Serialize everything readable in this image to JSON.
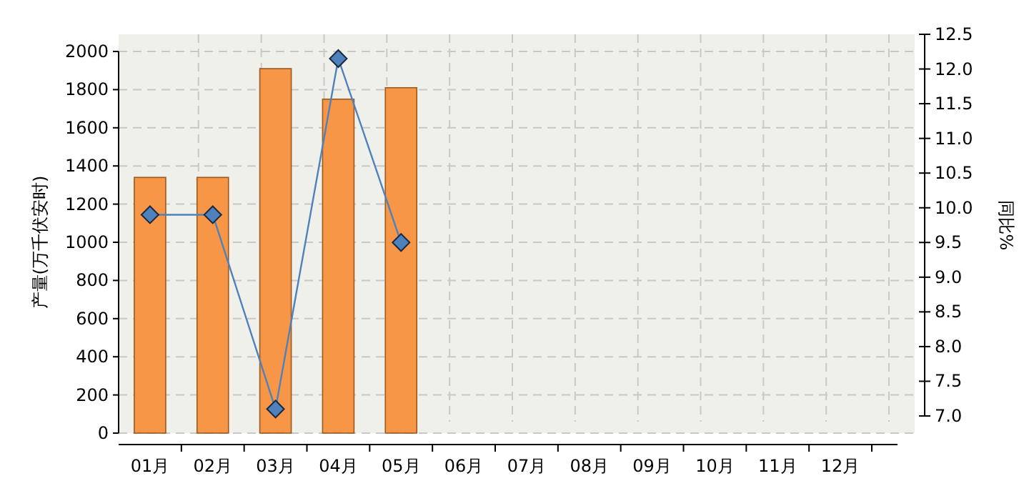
{
  "chart_data": {
    "type": "bar",
    "categories": [
      "01月",
      "02月",
      "03月",
      "04月",
      "05月",
      "06月",
      "07月",
      "08月",
      "09月",
      "10月",
      "11月",
      "12月"
    ],
    "ylabel": "产量(万千伏安时)",
    "y2label": "同比%",
    "ylim": [
      0,
      2000
    ],
    "yticks": [
      0,
      200,
      400,
      600,
      800,
      1000,
      1200,
      1400,
      1600,
      1800,
      2000
    ],
    "y2lim": [
      7,
      12.5
    ],
    "y2ticks": [
      {
        "value": 7,
        "label": "7.0"
      },
      7.5,
      {
        "value": 8,
        "label": "8.0"
      },
      8.5,
      {
        "value": 9,
        "label": "9.0"
      },
      9.5,
      {
        "value": 10,
        "label": "10.0"
      },
      10.5,
      {
        "value": 11,
        "label": "11.0"
      },
      11.5,
      {
        "value": 12,
        "label": "12.0"
      },
      12.5
    ],
    "grid": true,
    "marker": "diamond",
    "series": [
      {
        "color": "#f79646",
        "values": [
          1340,
          1340,
          1910,
          1750,
          1810,
          null,
          null,
          null,
          null,
          null,
          null,
          null
        ]
      },
      {
        "type": "line",
        "axis": "y2",
        "color": "#4f81bd",
        "values": [
          9.9,
          9.9,
          7.1,
          12.15,
          9.5,
          null,
          null,
          null,
          null,
          null,
          null,
          null
        ]
      }
    ]
  }
}
